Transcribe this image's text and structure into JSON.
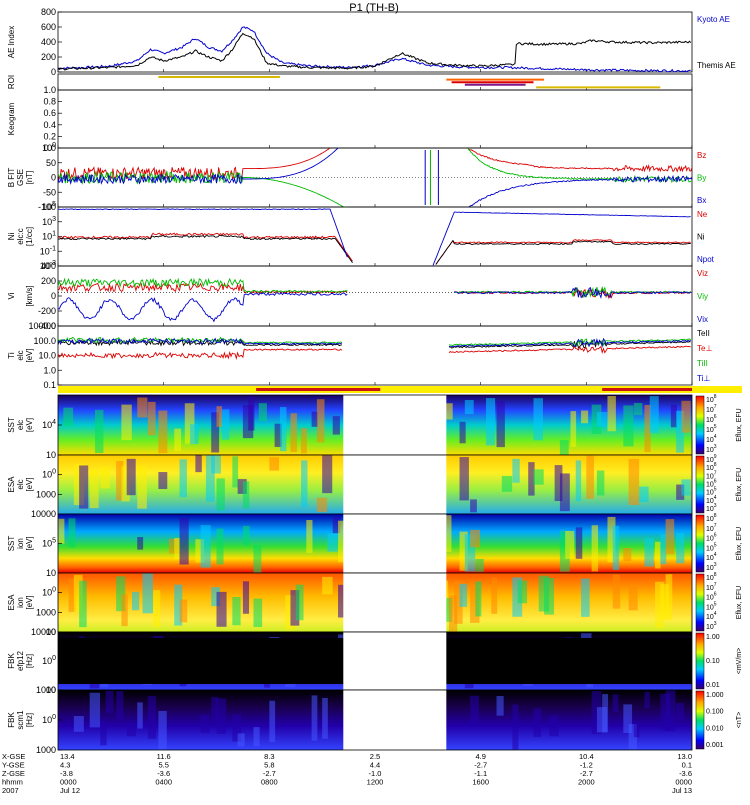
{
  "title": "P1  (TH-B)",
  "colors": {
    "kyoto": "#0000cc",
    "themis": "#000000",
    "red": "#dd0000",
    "green": "#00bb00",
    "blue": "#0000cc",
    "roi_yellow": "#d9b800",
    "roi_orange": "#ff6600",
    "roi_purple": "#7a1a8a",
    "bar_yellow": "#ffee00",
    "bar_red": "#cc1111"
  },
  "chart_data": [
    {
      "type": "line",
      "id": "ae",
      "ylabel": "AE Index",
      "ylim": [
        0,
        800
      ],
      "yticks": [
        "0",
        "200",
        "400",
        "600",
        "800"
      ],
      "series": [
        {
          "name": "Kyoto AE",
          "color": "#0000cc"
        },
        {
          "name": "Themis AE",
          "color": "#000000"
        }
      ],
      "ae_kyoto": [
        [
          0,
          50
        ],
        [
          1,
          60
        ],
        [
          2,
          80
        ],
        [
          3,
          150
        ],
        [
          3.5,
          300
        ],
        [
          4,
          250
        ],
        [
          4.7,
          330
        ],
        [
          5.2,
          450
        ],
        [
          5.7,
          330
        ],
        [
          6.2,
          280
        ],
        [
          6.6,
          420
        ],
        [
          7.0,
          600
        ],
        [
          7.4,
          550
        ],
        [
          7.9,
          250
        ],
        [
          8.5,
          120
        ],
        [
          9.5,
          80
        ],
        [
          11,
          60
        ],
        [
          12,
          90
        ],
        [
          13,
          180
        ],
        [
          14,
          90
        ],
        [
          15,
          70
        ],
        [
          16,
          60
        ],
        [
          17,
          60
        ],
        [
          18,
          50
        ],
        [
          19,
          40
        ],
        [
          20,
          30
        ],
        [
          22,
          20
        ],
        [
          24,
          15
        ]
      ],
      "ae_themis": [
        [
          0,
          40
        ],
        [
          1,
          50
        ],
        [
          2,
          60
        ],
        [
          3,
          90
        ],
        [
          3.5,
          200
        ],
        [
          4,
          150
        ],
        [
          4.7,
          200
        ],
        [
          5.2,
          280
        ],
        [
          5.7,
          200
        ],
        [
          6.2,
          150
        ],
        [
          6.6,
          300
        ],
        [
          7.0,
          520
        ],
        [
          7.4,
          450
        ],
        [
          7.9,
          120
        ],
        [
          8.5,
          80
        ],
        [
          9.5,
          60
        ],
        [
          11,
          50
        ],
        [
          12,
          80
        ],
        [
          13,
          250
        ],
        [
          14,
          120
        ],
        [
          15,
          90
        ],
        [
          16,
          80
        ],
        [
          17.3,
          100
        ],
        [
          17.35,
          380
        ],
        [
          18.5,
          370
        ],
        [
          19.8,
          380
        ],
        [
          20.2,
          420
        ],
        [
          21,
          400
        ],
        [
          22.5,
          390
        ],
        [
          24,
          400
        ]
      ]
    },
    {
      "type": "bar",
      "id": "roi",
      "ylabel": "ROI",
      "segments": [
        [
          3.8,
          8.4,
          "#d9b800"
        ],
        [
          14.7,
          18.4,
          "#ff6600"
        ],
        [
          14.9,
          18.0,
          "#dd0000"
        ],
        [
          15.4,
          17.7,
          "#7a1a8a"
        ],
        [
          18.1,
          22.8,
          "#d9b800"
        ]
      ]
    },
    {
      "type": "line",
      "id": "keogram",
      "ylabel": "Keogram",
      "ylim": [
        0,
        1.0
      ],
      "yticks": [
        "0.0",
        "0.2",
        "0.4",
        "0.6",
        "0.8",
        "1.0"
      ]
    },
    {
      "type": "line",
      "id": "bfit",
      "ylabel": "B FIT",
      "ylabel2": "GSE",
      "unit": "[nT]",
      "ylim": [
        -100,
        100
      ],
      "yticks": [
        "-100",
        "-50",
        "0",
        "50",
        "100"
      ],
      "series": [
        {
          "name": "Bz",
          "color": "#dd0000"
        },
        {
          "name": "By",
          "color": "#00bb00"
        },
        {
          "name": "Bx",
          "color": "#0000cc"
        }
      ]
    },
    {
      "type": "line",
      "id": "ni",
      "ylabel": "Ni",
      "ylabel2": "elc:c",
      "unit": "[1/cc]",
      "ylim": [
        -3,
        5
      ],
      "yticks": [
        "10-3",
        "10-1",
        "101",
        "103",
        "105"
      ],
      "series": [
        {
          "name": "Ne",
          "color": "#dd0000"
        },
        {
          "name": "Ni",
          "color": "#000000"
        },
        {
          "name": "Npot",
          "color": "#0000cc"
        }
      ]
    },
    {
      "type": "line",
      "id": "vi",
      "ylabel": "Vi",
      "unit": "[km/s]",
      "ylim": [
        -500,
        400
      ],
      "yticks": [
        "-400",
        "-200",
        "0",
        "200",
        "400"
      ],
      "series": [
        {
          "name": "Viz",
          "color": "#dd0000"
        },
        {
          "name": "Viy",
          "color": "#00bb00"
        },
        {
          "name": "Vix",
          "color": "#0000cc"
        }
      ]
    },
    {
      "type": "line",
      "id": "ti",
      "ylabel": "Ti",
      "ylabel2": "elc",
      "unit": "[eV]",
      "ylim": [
        -1,
        4
      ],
      "yticks": [
        "0.1",
        "1.0",
        "10.0",
        "100.0",
        "1000.0"
      ],
      "series": [
        {
          "name": "TeII",
          "color": "#000000"
        },
        {
          "name": "Te⊥",
          "color": "#dd0000"
        },
        {
          "name": "TiII",
          "color": "#00bb00"
        },
        {
          "name": "Ti⊥",
          "color": "#0000cc"
        }
      ]
    },
    {
      "type": "heatmap",
      "id": "sst_e",
      "ylabel": "SST",
      "ylabel2": "elc",
      "unit": "[eV]",
      "yticks": [
        "104"
      ],
      "cbar_label": "Eflux, EFU",
      "cbar_ticks": [
        "108",
        "107",
        "106",
        "105",
        "104",
        "103"
      ]
    },
    {
      "type": "heatmap",
      "id": "esa_e",
      "ylabel": "ESA",
      "ylabel2": "elc",
      "unit": "[eV]",
      "yticks": [
        "10000",
        "1000",
        "100",
        "10"
      ],
      "cbar_label": "Eflux, EFU",
      "cbar_ticks": [
        "109",
        "108",
        "107",
        "106",
        "105",
        "104",
        "103"
      ]
    },
    {
      "type": "heatmap",
      "id": "sst_i",
      "ylabel": "SST",
      "ylabel2": "ion",
      "unit": "[eV]",
      "yticks": [
        "105"
      ],
      "cbar_label": "Eflux, EFU",
      "cbar_ticks": [
        "108",
        "107",
        "106",
        "105",
        "104",
        "103"
      ]
    },
    {
      "type": "heatmap",
      "id": "esa_i",
      "ylabel": "ESA",
      "ylabel2": "ion",
      "unit": "[eV]",
      "yticks": [
        "10000",
        "1000",
        "100",
        "10"
      ],
      "cbar_label": "Eflux, EFU",
      "cbar_ticks": [
        "108",
        "107",
        "106",
        "105",
        "104",
        "103"
      ]
    },
    {
      "type": "heatmap",
      "id": "fbk_e",
      "ylabel": "FBK",
      "ylabel2": "efp12",
      "unit": "[Hz]",
      "yticks": [
        "1000",
        "100",
        "10"
      ],
      "cbar_label": "<mV/m>",
      "cbar_ticks": [
        "1.00",
        "0.10",
        "0.01"
      ]
    },
    {
      "type": "heatmap",
      "id": "fbk_b",
      "ylabel": "FBK",
      "ylabel2": "scm1",
      "unit": "[Hz]",
      "yticks": [
        "1000",
        "100",
        "10"
      ],
      "cbar_label": "<nT>",
      "cbar_ticks": [
        "1.000",
        "0.100",
        "0.010",
        "0.001"
      ]
    }
  ],
  "xaxis": {
    "row_labels": [
      "X-GSE",
      "Y-GSE",
      "Z-GSE",
      "hhmm",
      "2007"
    ],
    "columns": [
      {
        "t": 0,
        "x": "13.4",
        "y": "4.3",
        "z": "-3.8",
        "hhmm": "0000",
        "date": "Jul 12"
      },
      {
        "t": 4,
        "x": "11.6",
        "y": "5.5",
        "z": "-3.6",
        "hhmm": "0400",
        "date": ""
      },
      {
        "t": 8,
        "x": "8.3",
        "y": "5.8",
        "z": "-2.7",
        "hhmm": "0800",
        "date": ""
      },
      {
        "t": 12,
        "x": "2.5",
        "y": "4.4",
        "z": "-1.0",
        "hhmm": "1200",
        "date": ""
      },
      {
        "t": 16,
        "x": "4.9",
        "y": "-2.7",
        "z": "-1.1",
        "hhmm": "1600",
        "date": ""
      },
      {
        "t": 20,
        "x": "10.4",
        "y": "-1.2",
        "z": "-2.7",
        "hhmm": "2000",
        "date": ""
      },
      {
        "t": 24,
        "x": "13.0",
        "y": "0.1",
        "z": "-3.6",
        "hhmm": "0000",
        "date": "Jul 13"
      }
    ]
  },
  "bar_red_segments": [
    [
      7.5,
      12.2
    ],
    [
      20.6,
      24
    ]
  ]
}
